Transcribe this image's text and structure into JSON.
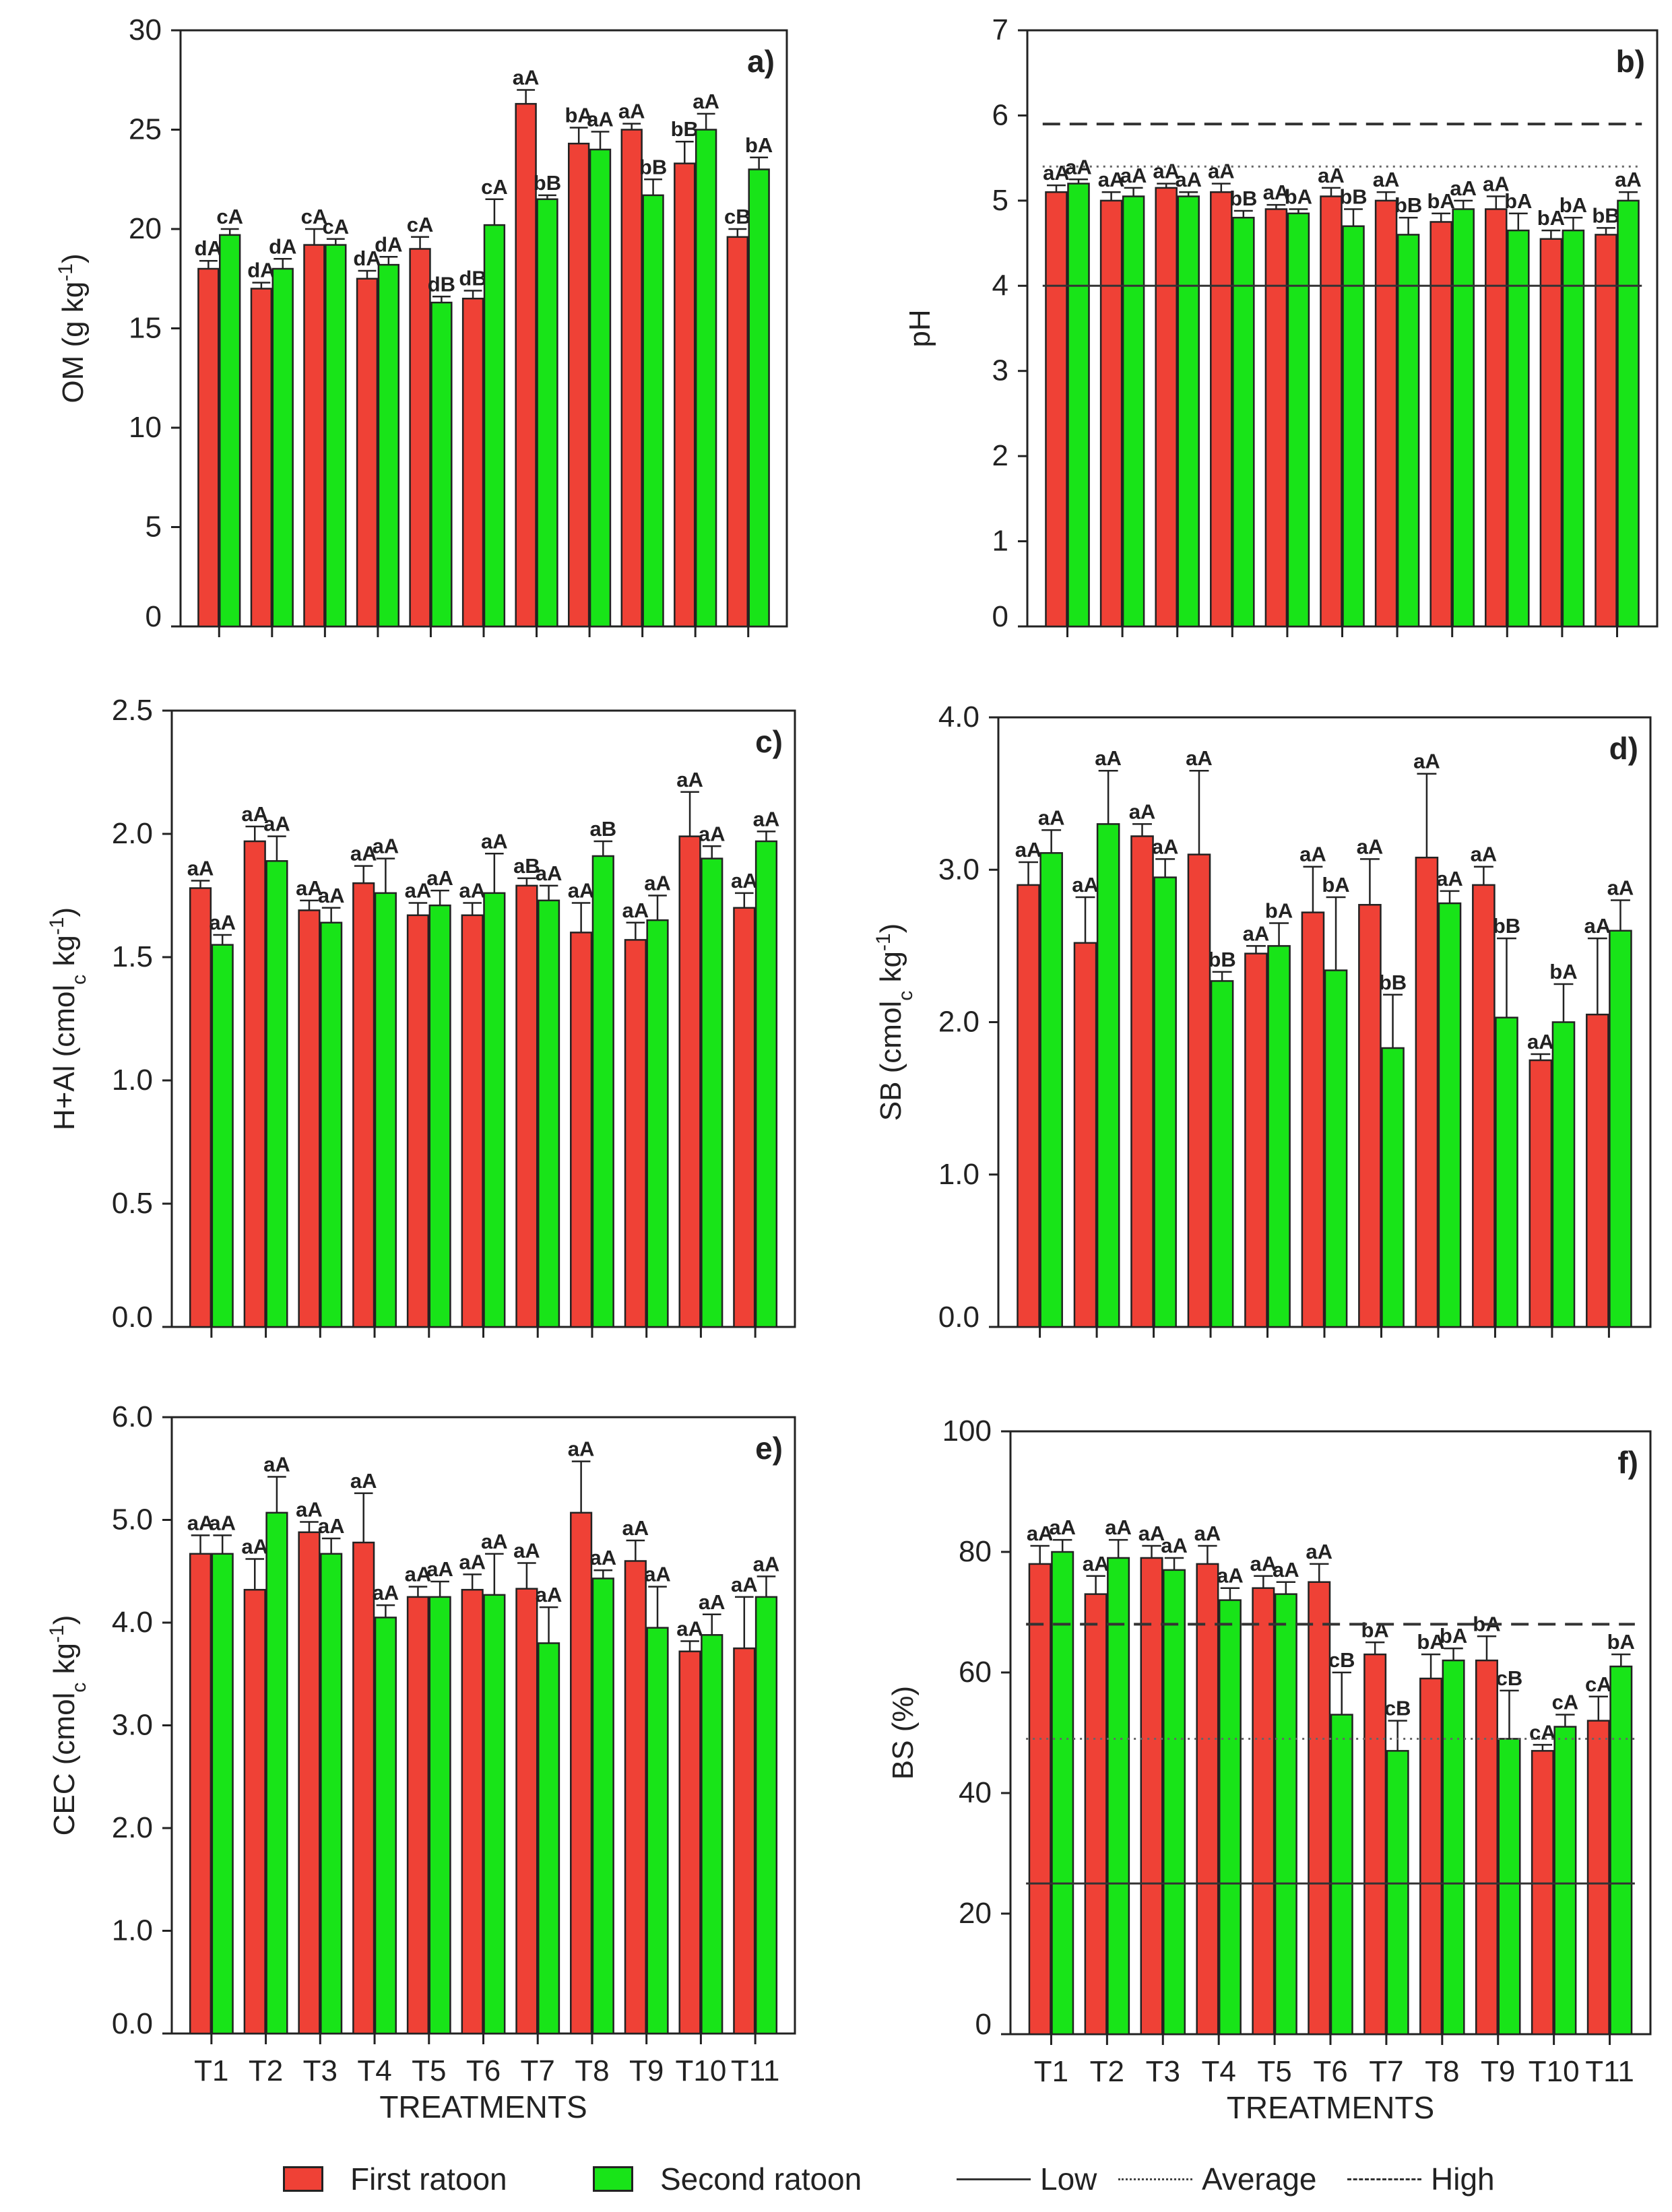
{
  "figure": {
    "x_title": "TREATMENTS",
    "categories": [
      "T1",
      "T2",
      "T3",
      "T4",
      "T5",
      "T6",
      "T7",
      "T8",
      "T9",
      "T10",
      "T11"
    ],
    "colors": {
      "first_ratoon": "#ef4136",
      "second_ratoon": "#18e418",
      "axis": "#222222",
      "reference_line": "#333333"
    }
  },
  "legend": {
    "first_ratoon": "First ratoon",
    "second_ratoon": "Second ratoon",
    "low": "Low",
    "average": "Average",
    "high": "High"
  },
  "chart_data": [
    {
      "id": "a",
      "panel_label": "a)",
      "type": "bar",
      "ylabel": "OM (g kg-1)",
      "ylim": [
        0,
        30
      ],
      "yticks": [
        "0",
        "5",
        "10",
        "15",
        "20",
        "25",
        "30"
      ],
      "show_xlabels": false,
      "series": [
        {
          "name": "First ratoon",
          "values": [
            18.0,
            17.0,
            19.2,
            17.5,
            19.0,
            16.5,
            26.3,
            24.3,
            25.0,
            23.3,
            19.6
          ],
          "errors": [
            0.4,
            0.3,
            0.8,
            0.4,
            0.6,
            0.4,
            0.7,
            0.8,
            0.3,
            1.1,
            0.4
          ],
          "labels": [
            "dA",
            "dA",
            "cA",
            "dA",
            "cA",
            "dB",
            "aA",
            "bA",
            "aA",
            "bB",
            "cB"
          ]
        },
        {
          "name": "Second ratoon",
          "values": [
            19.7,
            18.0,
            19.2,
            18.2,
            16.3,
            20.2,
            21.5,
            24.0,
            21.7,
            25.0,
            23.0
          ],
          "errors": [
            0.3,
            0.5,
            0.3,
            0.4,
            0.3,
            1.3,
            0.2,
            0.9,
            0.8,
            0.8,
            0.6
          ],
          "labels": [
            "cA",
            "dA",
            "cA",
            "dA",
            "dB",
            "cA",
            "bB",
            "aA",
            "bB",
            "aA",
            "bA"
          ]
        }
      ],
      "reference_lines": []
    },
    {
      "id": "b",
      "panel_label": "b)",
      "type": "bar",
      "ylabel": "pH",
      "ylim": [
        0,
        7
      ],
      "yticks": [
        "0",
        "1",
        "2",
        "3",
        "4",
        "5",
        "6",
        "7"
      ],
      "show_xlabels": false,
      "series": [
        {
          "name": "First ratoon",
          "values": [
            5.1,
            5.0,
            5.15,
            5.1,
            4.9,
            5.05,
            5.0,
            4.75,
            4.9,
            4.55,
            4.6
          ],
          "errors": [
            0.08,
            0.1,
            0.05,
            0.1,
            0.05,
            0.1,
            0.1,
            0.1,
            0.15,
            0.1,
            0.08
          ],
          "labels": [
            "aA",
            "aA",
            "aA",
            "aA",
            "aA",
            "aA",
            "aA",
            "bA",
            "aA",
            "bA",
            "bB"
          ]
        },
        {
          "name": "Second ratoon",
          "values": [
            5.2,
            5.05,
            5.05,
            4.8,
            4.85,
            4.7,
            4.6,
            4.9,
            4.65,
            4.65,
            5.0
          ],
          "errors": [
            0.05,
            0.1,
            0.05,
            0.08,
            0.05,
            0.2,
            0.2,
            0.1,
            0.2,
            0.15,
            0.1
          ],
          "labels": [
            "aA",
            "aA",
            "aA",
            "bB",
            "bA",
            "bB",
            "bB",
            "aA",
            "bA",
            "bA",
            "aA"
          ]
        }
      ],
      "reference_lines": [
        {
          "name": "Low",
          "style": "solid",
          "value": 4.0
        },
        {
          "name": "Average",
          "style": "dotted",
          "value": 5.4
        },
        {
          "name": "High",
          "style": "dashed",
          "value": 5.9
        }
      ]
    },
    {
      "id": "c",
      "panel_label": "c)",
      "type": "bar",
      "ylabel": "H+Al (cmolc kg-1)",
      "ylim": [
        0,
        2.5
      ],
      "yticks": [
        "0.0",
        "0.5",
        "1.0",
        "1.5",
        "2.0",
        "2.5"
      ],
      "show_xlabels": false,
      "series": [
        {
          "name": "First ratoon",
          "values": [
            1.78,
            1.97,
            1.69,
            1.8,
            1.67,
            1.67,
            1.79,
            1.6,
            1.57,
            1.99,
            1.7
          ],
          "errors": [
            0.03,
            0.06,
            0.04,
            0.07,
            0.05,
            0.05,
            0.03,
            0.12,
            0.07,
            0.18,
            0.06
          ],
          "labels": [
            "aA",
            "aA",
            "aA",
            "aA",
            "aA",
            "aA",
            "aB",
            "aA",
            "aA",
            "aA",
            "aA"
          ]
        },
        {
          "name": "Second ratoon",
          "values": [
            1.55,
            1.89,
            1.64,
            1.76,
            1.71,
            1.76,
            1.73,
            1.91,
            1.65,
            1.9,
            1.97
          ],
          "errors": [
            0.04,
            0.1,
            0.06,
            0.14,
            0.06,
            0.16,
            0.06,
            0.06,
            0.1,
            0.05,
            0.04
          ],
          "labels": [
            "aA",
            "aA",
            "aA",
            "aA",
            "aA",
            "aA",
            "aA",
            "aB",
            "aA",
            "aA",
            "aA"
          ]
        }
      ],
      "reference_lines": []
    },
    {
      "id": "d",
      "panel_label": "d)",
      "type": "bar",
      "ylabel": "SB (cmolc kg-1)",
      "ylim": [
        0,
        4.0
      ],
      "yticks": [
        "0.0",
        "1.0",
        "2.0",
        "3.0",
        "4.0"
      ],
      "show_xlabels": false,
      "series": [
        {
          "name": "First ratoon",
          "values": [
            2.9,
            2.52,
            3.22,
            3.1,
            2.45,
            2.72,
            2.77,
            3.08,
            2.9,
            1.75,
            2.05
          ],
          "errors": [
            0.15,
            0.3,
            0.08,
            0.55,
            0.05,
            0.3,
            0.3,
            0.55,
            0.12,
            0.04,
            0.5
          ],
          "labels": [
            "aA",
            "aA",
            "aA",
            "aA",
            "aA",
            "aA",
            "aA",
            "aA",
            "aA",
            "aA",
            "aA"
          ]
        },
        {
          "name": "Second ratoon",
          "values": [
            3.11,
            3.3,
            2.95,
            2.27,
            2.5,
            2.34,
            1.83,
            2.78,
            2.03,
            2.0,
            2.6
          ],
          "errors": [
            0.15,
            0.35,
            0.12,
            0.06,
            0.15,
            0.48,
            0.35,
            0.08,
            0.52,
            0.25,
            0.2
          ],
          "labels": [
            "aA",
            "aA",
            "aA",
            "bB",
            "bA",
            "bA",
            "bB",
            "aA",
            "bB",
            "bA",
            "aA"
          ]
        }
      ],
      "reference_lines": []
    },
    {
      "id": "e",
      "panel_label": "e)",
      "type": "bar",
      "ylabel": "CEC (cmolc kg-1)",
      "ylim": [
        0,
        6.0
      ],
      "yticks": [
        "0.0",
        "1.0",
        "2.0",
        "3.0",
        "4.0",
        "5.0",
        "6.0"
      ],
      "show_xlabels": true,
      "series": [
        {
          "name": "First ratoon",
          "values": [
            4.67,
            4.32,
            4.88,
            4.78,
            4.25,
            4.32,
            4.33,
            5.07,
            4.6,
            3.72,
            3.75
          ],
          "errors": [
            0.18,
            0.3,
            0.1,
            0.48,
            0.1,
            0.15,
            0.25,
            0.5,
            0.2,
            0.1,
            0.5
          ],
          "labels": [
            "aA",
            "aA",
            "aA",
            "aA",
            "aA",
            "aA",
            "aA",
            "aA",
            "aA",
            "aA",
            "aA"
          ]
        },
        {
          "name": "Second ratoon",
          "values": [
            4.67,
            5.07,
            4.67,
            4.05,
            4.25,
            4.27,
            3.8,
            4.43,
            3.95,
            3.88,
            4.25
          ],
          "errors": [
            0.18,
            0.35,
            0.15,
            0.12,
            0.15,
            0.4,
            0.35,
            0.08,
            0.4,
            0.2,
            0.2
          ],
          "labels": [
            "aA",
            "aA",
            "aA",
            "aA",
            "aA",
            "aA",
            "aA",
            "aA",
            "aA",
            "aA",
            "aA"
          ]
        }
      ],
      "reference_lines": []
    },
    {
      "id": "f",
      "panel_label": "f)",
      "type": "bar",
      "ylabel": "BS (%)",
      "ylim": [
        0,
        100
      ],
      "yticks": [
        "0",
        "20",
        "40",
        "60",
        "80",
        "100"
      ],
      "show_xlabels": true,
      "series": [
        {
          "name": "First ratoon",
          "values": [
            78,
            73,
            79,
            78,
            74,
            75,
            63,
            59,
            62,
            47,
            52
          ],
          "errors": [
            3,
            3,
            2,
            3,
            2,
            3,
            2,
            4,
            4,
            1,
            4
          ],
          "labels": [
            "aA",
            "aA",
            "aA",
            "aA",
            "aA",
            "aA",
            "bA",
            "bA",
            "bA",
            "cA",
            "cA"
          ]
        },
        {
          "name": "Second ratoon",
          "values": [
            80,
            79,
            77,
            72,
            73,
            53,
            47,
            62,
            49,
            51,
            61
          ],
          "errors": [
            2,
            3,
            2,
            2,
            2,
            7,
            5,
            2,
            8,
            2,
            2
          ],
          "labels": [
            "aA",
            "aA",
            "aA",
            "aA",
            "aA",
            "cB",
            "cB",
            "bA",
            "cB",
            "cA",
            "bA"
          ]
        }
      ],
      "reference_lines": [
        {
          "name": "Low",
          "style": "solid",
          "value": 25
        },
        {
          "name": "Average",
          "style": "dotted",
          "value": 49
        },
        {
          "name": "High",
          "style": "dashed",
          "value": 68
        }
      ]
    }
  ]
}
